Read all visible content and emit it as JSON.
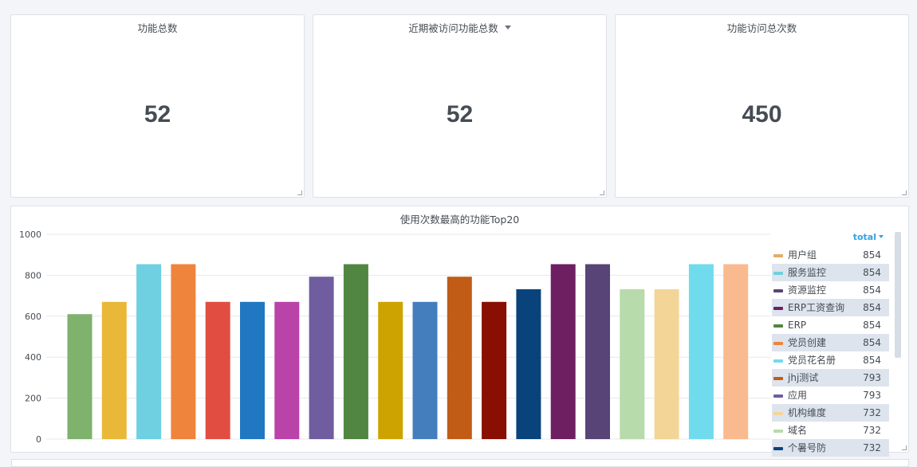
{
  "stats": [
    {
      "title": "功能总数",
      "value": "52"
    },
    {
      "title": "近期被访问功能总数",
      "value": "52"
    },
    {
      "title": "功能访问总次数",
      "value": "450"
    }
  ],
  "chart_data": {
    "type": "bar",
    "title": "使用次数最高的功能Top20",
    "xlabel": "",
    "ylabel": "",
    "ylim": [
      0,
      1000
    ],
    "yticks": [
      "0",
      "200",
      "400",
      "600",
      "800",
      "1000"
    ],
    "grid": true,
    "legend_position": "right",
    "values": [
      610,
      670,
      854,
      854,
      670,
      670,
      670,
      793,
      854,
      670,
      670,
      793,
      670,
      732,
      854,
      854,
      732,
      732,
      854,
      854
    ],
    "colors": [
      "#7eb26d",
      "#eab839",
      "#6ed0e0",
      "#ef843c",
      "#e24d42",
      "#1f78c1",
      "#ba43a9",
      "#705da0",
      "#508642",
      "#cca300",
      "#447ebc",
      "#c15c17",
      "#890f02",
      "#0a437c",
      "#6d1f62",
      "#584477",
      "#b7dbab",
      "#f4d598",
      "#70dbed",
      "#f9ba8f"
    ]
  },
  "legend": {
    "header": "total",
    "items": [
      {
        "name": "用户组",
        "value": "854",
        "color": "#e5ac69"
      },
      {
        "name": "服务监控",
        "value": "854",
        "color": "#6ed0e0"
      },
      {
        "name": "资源监控",
        "value": "854",
        "color": "#584477"
      },
      {
        "name": "ERP工资查询",
        "value": "854",
        "color": "#6d1f62"
      },
      {
        "name": "ERP",
        "value": "854",
        "color": "#508642"
      },
      {
        "name": "党员创建",
        "value": "854",
        "color": "#ef843c"
      },
      {
        "name": "党员花名册",
        "value": "854",
        "color": "#70dbed"
      },
      {
        "name": "jhj测试",
        "value": "793",
        "color": "#c15c17"
      },
      {
        "name": "应用",
        "value": "793",
        "color": "#705da0"
      },
      {
        "name": "机构维度",
        "value": "732",
        "color": "#f4d598"
      },
      {
        "name": "域名",
        "value": "732",
        "color": "#b7dbab"
      },
      {
        "name": "个暑号防",
        "value": "732",
        "color": "#0a437c"
      }
    ]
  }
}
